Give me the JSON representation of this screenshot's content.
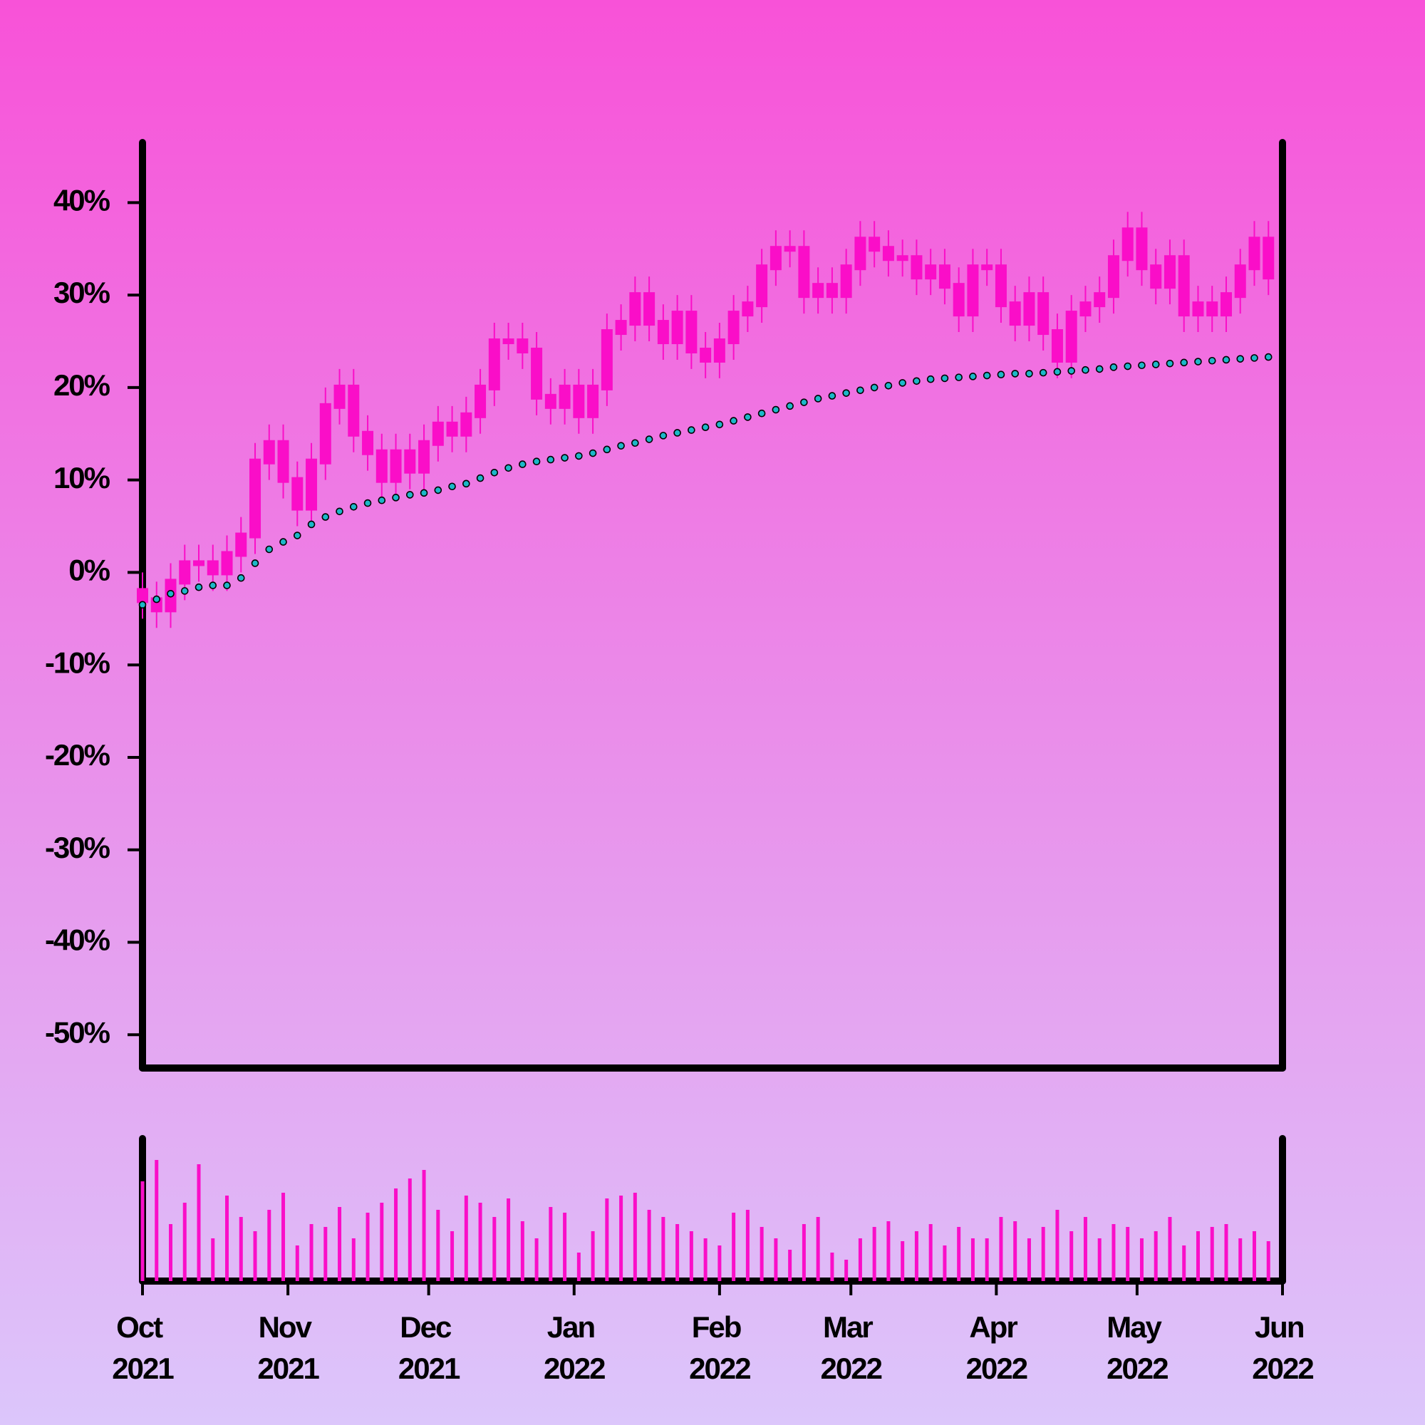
{
  "chart_data": [
    {
      "type": "candlestick",
      "x": [
        0,
        3,
        6,
        9,
        12,
        15,
        18,
        21,
        24,
        27,
        30,
        33,
        36,
        39,
        42,
        45,
        48,
        51,
        54,
        57,
        60,
        63,
        66,
        69,
        72,
        75,
        78,
        81,
        84,
        87,
        90,
        93,
        96,
        99,
        102,
        105,
        108,
        111,
        114,
        117,
        120,
        123,
        126,
        129,
        132,
        135,
        138,
        141,
        144,
        147,
        150,
        153,
        156,
        159,
        162,
        165,
        168,
        171,
        174,
        177,
        180,
        183,
        186,
        189,
        192,
        195,
        198,
        201,
        204,
        207,
        210,
        213,
        216,
        219,
        222,
        225,
        228,
        231,
        234,
        237,
        240
      ],
      "xlim": [
        0,
        243
      ],
      "ylim": [
        -53.6,
        46.5
      ],
      "yticks": [
        {
          "value": 40,
          "label": "40%"
        },
        {
          "value": 30,
          "label": "30%"
        },
        {
          "value": 20,
          "label": "20%"
        },
        {
          "value": 10,
          "label": "10%"
        },
        {
          "value": 0,
          "label": "0%"
        },
        {
          "value": -10,
          "label": "-10%"
        },
        {
          "value": -20,
          "label": "-20%"
        },
        {
          "value": -30,
          "label": "-30%"
        },
        {
          "value": -40,
          "label": "-40%"
        },
        {
          "value": -50,
          "label": "-50%"
        }
      ],
      "candles": {
        "color": "#fa0ec8",
        "open": [
          -2,
          -3,
          -4,
          -1,
          1,
          1,
          0,
          2,
          4,
          12,
          14,
          10,
          7,
          12,
          18,
          20,
          15,
          13,
          10,
          13,
          11,
          14,
          16,
          15,
          17,
          20,
          25,
          25,
          24,
          19,
          18,
          20,
          17,
          20,
          26,
          27,
          30,
          27,
          25,
          28,
          24,
          23,
          25,
          28,
          29,
          33,
          35,
          35,
          30,
          31,
          30,
          33,
          36,
          35,
          34,
          34,
          32,
          33,
          31,
          28,
          33,
          33,
          29,
          27,
          30,
          26,
          23,
          28,
          29,
          30,
          34,
          37,
          33,
          31,
          34,
          28,
          29,
          28,
          30,
          33,
          36
        ],
        "high": [
          0,
          -1,
          1,
          3,
          3,
          3,
          4,
          6,
          14,
          16,
          16,
          12,
          14,
          20,
          22,
          22,
          17,
          15,
          15,
          15,
          16,
          18,
          18,
          19,
          22,
          27,
          27,
          27,
          26,
          21,
          22,
          22,
          22,
          28,
          29,
          32,
          32,
          29,
          30,
          30,
          26,
          27,
          30,
          31,
          35,
          37,
          37,
          37,
          33,
          33,
          35,
          38,
          38,
          37,
          36,
          36,
          35,
          35,
          33,
          35,
          35,
          35,
          31,
          32,
          32,
          28,
          30,
          31,
          32,
          36,
          39,
          39,
          35,
          36,
          36,
          31,
          31,
          32,
          35,
          38,
          38
        ],
        "low": [
          -5,
          -6,
          -6,
          -3,
          -1,
          -2,
          -2,
          0,
          2,
          10,
          8,
          5,
          5,
          10,
          16,
          13,
          11,
          8,
          8,
          9,
          9,
          12,
          13,
          13,
          15,
          18,
          23,
          22,
          17,
          16,
          16,
          15,
          15,
          18,
          24,
          25,
          25,
          23,
          23,
          22,
          21,
          21,
          23,
          26,
          27,
          31,
          33,
          28,
          28,
          28,
          28,
          31,
          33,
          32,
          32,
          30,
          30,
          29,
          26,
          26,
          31,
          27,
          25,
          25,
          24,
          21,
          21,
          26,
          27,
          28,
          32,
          31,
          29,
          29,
          26,
          26,
          26,
          26,
          28,
          31,
          30
        ],
        "close": [
          -3,
          -4,
          -1,
          1,
          1,
          0,
          2,
          4,
          12,
          14,
          10,
          7,
          12,
          18,
          20,
          15,
          13,
          10,
          13,
          11,
          14,
          16,
          15,
          17,
          20,
          25,
          25,
          24,
          19,
          18,
          20,
          17,
          20,
          26,
          27,
          30,
          27,
          25,
          28,
          24,
          23,
          25,
          28,
          29,
          33,
          35,
          35,
          30,
          31,
          30,
          33,
          36,
          35,
          34,
          34,
          32,
          33,
          31,
          28,
          33,
          33,
          29,
          27,
          30,
          26,
          23,
          28,
          29,
          30,
          34,
          37,
          33,
          31,
          34,
          28,
          29,
          28,
          30,
          33,
          36,
          32
        ]
      },
      "series": [
        {
          "color": "#1cb8c8",
          "values": [
            -3.5,
            -2.9,
            -2.3,
            -2,
            -1.6,
            -1.4,
            -1.4,
            -0.6,
            1,
            2.5,
            3.3,
            4,
            5.2,
            6,
            6.6,
            7.1,
            7.5,
            7.8,
            8.1,
            8.4,
            8.6,
            8.9,
            9.3,
            9.6,
            10.2,
            10.8,
            11.3,
            11.7,
            12,
            12.2,
            12.4,
            12.6,
            12.9,
            13.3,
            13.7,
            14,
            14.4,
            14.8,
            15.1,
            15.4,
            15.7,
            16,
            16.4,
            16.8,
            17.2,
            17.6,
            18,
            18.4,
            18.8,
            19.1,
            19.4,
            19.7,
            20,
            20.2,
            20.5,
            20.7,
            20.9,
            21,
            21.1,
            21.2,
            21.3,
            21.4,
            21.5,
            21.5,
            21.6,
            21.7,
            21.8,
            21.9,
            22,
            22.2,
            22.3,
            22.4,
            22.5,
            22.6,
            22.7,
            22.8,
            22.9,
            23,
            23.1,
            23.2,
            23.3
          ]
        }
      ]
    },
    {
      "type": "bar",
      "color": "#fa0ec8",
      "xlim": [
        0,
        243
      ],
      "ylim": [
        0,
        100
      ],
      "xticks": [
        {
          "value": 0,
          "label": "Oct 2021"
        },
        {
          "value": 31,
          "label": "Nov 2021"
        },
        {
          "value": 61,
          "label": "Dec 2021"
        },
        {
          "value": 92,
          "label": "Jan 2022"
        },
        {
          "value": 123,
          "label": "Feb 2022"
        },
        {
          "value": 151,
          "label": "Mar 2022"
        },
        {
          "value": 182,
          "label": "Apr 2022"
        },
        {
          "value": 212,
          "label": "May 2022"
        },
        {
          "value": 243,
          "label": "Jun 2022"
        }
      ],
      "values": [
        70,
        85,
        40,
        55,
        82,
        30,
        60,
        45,
        35,
        50,
        62,
        25,
        40,
        38,
        52,
        30,
        48,
        55,
        65,
        72,
        78,
        50,
        35,
        60,
        55,
        45,
        58,
        42,
        30,
        52,
        48,
        20,
        35,
        58,
        60,
        62,
        50,
        45,
        40,
        35,
        30,
        25,
        48,
        50,
        38,
        30,
        22,
        40,
        45,
        20,
        15,
        30,
        38,
        42,
        28,
        35,
        40,
        25,
        38,
        30,
        30,
        45,
        42,
        30,
        38,
        50,
        35,
        45,
        30,
        40,
        38,
        30,
        35,
        45,
        25,
        35,
        38,
        40,
        30,
        35,
        28
      ]
    }
  ]
}
